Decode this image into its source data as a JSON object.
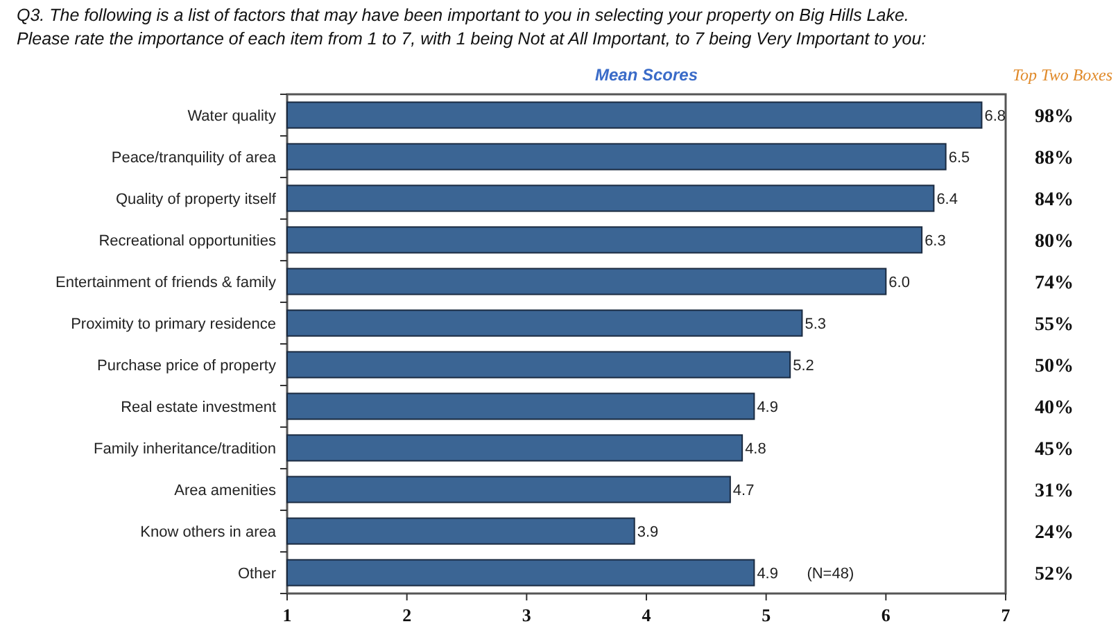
{
  "chart_data": {
    "type": "bar",
    "orientation": "horizontal",
    "title": "Q3.  The following is a list of factors that may have been important to you in selecting your property on Big Hills Lake.",
    "subtitle": "Please rate the importance of each item from 1 to 7, with 1 being Not at All Important, to 7 being Very Important to you:",
    "categories": [
      "Water quality",
      "Peace/tranquility of area",
      "Quality of property itself",
      "Recreational opportunities",
      "Entertainment of friends & family",
      "Proximity to primary residence",
      "Purchase price of property",
      "Real estate investment",
      "Family inheritance/tradition",
      "Area amenities",
      "Know others in area",
      "Other"
    ],
    "values": [
      6.8,
      6.5,
      6.4,
      6.3,
      6.0,
      5.3,
      5.2,
      4.9,
      4.8,
      4.7,
      3.9,
      4.9
    ],
    "value_labels": [
      "6.8",
      "6.5",
      "6.4",
      "6.3",
      "6.0",
      "5.3",
      "5.2",
      "4.9",
      "4.8",
      "4.7",
      "3.9",
      "4.9"
    ],
    "color": "#3b6594",
    "xlim": [
      1,
      7
    ],
    "xticks": [
      1,
      2,
      3,
      4,
      5,
      6,
      7
    ],
    "grid": false,
    "annotations": [
      "Mean Scores",
      "Top Two Boxes",
      "(N=48)",
      "98%",
      "88%",
      "84%",
      "80%",
      "74%",
      "55%",
      "50%",
      "40%",
      "45%",
      "31%",
      "24%",
      "52%"
    ]
  }
}
